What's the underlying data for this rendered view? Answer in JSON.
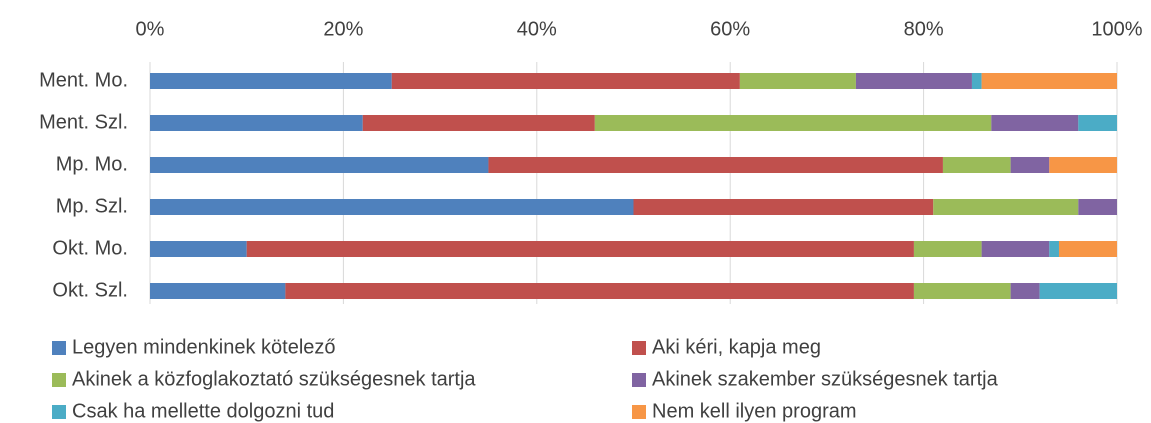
{
  "chart_data": {
    "type": "stacked-bar-horizontal",
    "categories": [
      "Ment. Mo.",
      "Ment. Szl.",
      "Mp. Mo.",
      "Mp. Szl.",
      "Okt. Mo.",
      "Okt. Szl."
    ],
    "series": [
      {
        "name": "Legyen mindenkinek kötelező",
        "color": "#4f81bd",
        "values": [
          25,
          22,
          35,
          50,
          10,
          14
        ]
      },
      {
        "name": "Aki kéri, kapja meg",
        "color": "#c0504d",
        "values": [
          36,
          24,
          47,
          31,
          69,
          65
        ]
      },
      {
        "name": "Akinek a közfoglakoztató szükségesnek tartja",
        "color": "#9bbb59",
        "values": [
          12,
          41,
          7,
          15,
          7,
          10
        ]
      },
      {
        "name": "Akinek szakember szükségesnek tartja",
        "color": "#8064a2",
        "values": [
          12,
          9,
          4,
          4,
          7,
          3
        ]
      },
      {
        "name": "Csak ha mellette dolgozni tud",
        "color": "#4bacc6",
        "values": [
          1,
          4,
          0,
          0,
          1,
          8
        ]
      },
      {
        "name": "Nem kell ilyen program",
        "color": "#f79646",
        "values": [
          14,
          0,
          7,
          0,
          6,
          0
        ]
      }
    ],
    "xlim": [
      0,
      100
    ],
    "xticks": [
      {
        "value": 0,
        "label": "0%"
      },
      {
        "value": 20,
        "label": "20%"
      },
      {
        "value": 40,
        "label": "40%"
      },
      {
        "value": 60,
        "label": "60%"
      },
      {
        "value": 80,
        "label": "80%"
      },
      {
        "value": 100,
        "label": "100%"
      }
    ],
    "grid": true
  }
}
